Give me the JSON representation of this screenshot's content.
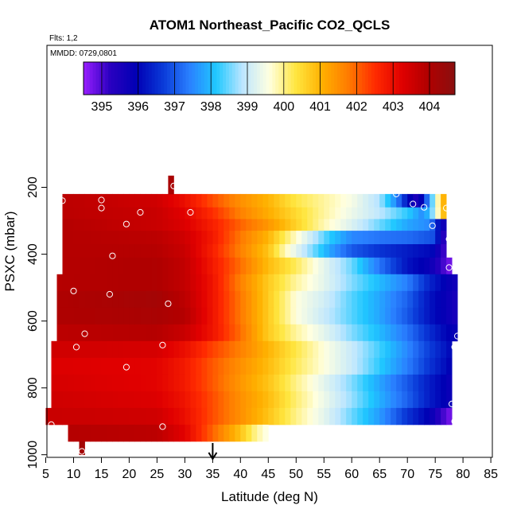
{
  "chart_data": {
    "type": "heatmap",
    "title": "ATOM1 Northeast_Pacific CO2_QCLS",
    "flights_note": "Flts: 1,2",
    "mmdd_note": "MMDD: 0729,0801",
    "xlabel": "Latitude (deg N)",
    "ylabel": "PSXC (mbar)",
    "xlim": [
      5,
      85
    ],
    "ylim": [
      1000,
      0
    ],
    "y_reversed": true,
    "x_ticks": [
      5,
      10,
      15,
      20,
      25,
      30,
      35,
      40,
      45,
      50,
      55,
      60,
      65,
      70,
      75,
      80,
      85
    ],
    "y_ticks": [
      200,
      400,
      600,
      800,
      1000
    ],
    "colorbar": {
      "ticks": [
        395,
        396,
        397,
        398,
        399,
        400,
        401,
        402,
        403,
        404
      ],
      "min": 394.5,
      "max": 404.7,
      "stops": [
        "#9a1fff",
        "#2a00c0",
        "#0000b4",
        "#0a3ad8",
        "#2a80ff",
        "#20c8ff",
        "#bde6ff",
        "#ffffe0",
        "#ffe640",
        "#ffb000",
        "#ff7a00",
        "#ff2a00",
        "#e00000",
        "#b00000",
        "#8a1010"
      ]
    },
    "arrow_latitude": 35,
    "bands": [
      {
        "p_top": 220,
        "p_bot": 260,
        "lat_start": 8,
        "lat_end": 77,
        "values": [
          [
            8,
            403.8
          ],
          [
            25,
            403.5
          ],
          [
            30,
            403.0
          ],
          [
            35,
            402.2
          ],
          [
            40,
            401.5
          ],
          [
            45,
            401.0
          ],
          [
            50,
            400.3
          ],
          [
            55,
            399.9
          ],
          [
            60,
            399.5
          ],
          [
            65,
            398.8
          ],
          [
            68,
            397.5
          ],
          [
            70,
            396.2
          ],
          [
            72,
            395.3
          ],
          [
            74,
            397.8
          ],
          [
            76,
            400.5
          ],
          [
            77,
            401.5
          ]
        ]
      },
      {
        "p_top": 260,
        "p_bot": 295,
        "lat_start": 8,
        "lat_end": 77,
        "values": [
          [
            8,
            403.8
          ],
          [
            25,
            403.6
          ],
          [
            30,
            403.2
          ],
          [
            35,
            402.5
          ],
          [
            40,
            401.7
          ],
          [
            45,
            401.1
          ],
          [
            50,
            400.5
          ],
          [
            55,
            399.9
          ],
          [
            60,
            399.4
          ],
          [
            65,
            398.9
          ],
          [
            70,
            398.2
          ],
          [
            73,
            397.5
          ],
          [
            75,
            399.0
          ],
          [
            76,
            400.5
          ],
          [
            77,
            401.2
          ]
        ]
      },
      {
        "p_top": 295,
        "p_bot": 330,
        "lat_start": 8,
        "lat_end": 77,
        "values": [
          [
            8,
            403.9
          ],
          [
            25,
            403.6
          ],
          [
            30,
            403.3
          ],
          [
            35,
            402.7
          ],
          [
            40,
            402.0
          ],
          [
            45,
            401.4
          ],
          [
            50,
            400.6
          ],
          [
            55,
            399.8
          ],
          [
            60,
            399.2
          ],
          [
            65,
            398.5
          ],
          [
            70,
            397.8
          ],
          [
            74,
            397.5
          ],
          [
            76,
            395.8
          ],
          [
            77,
            395.6
          ]
        ]
      },
      {
        "p_top": 330,
        "p_bot": 370,
        "lat_start": 8,
        "lat_end": 77,
        "values": [
          [
            8,
            403.9
          ],
          [
            25,
            403.8
          ],
          [
            30,
            403.5
          ],
          [
            35,
            402.8
          ],
          [
            40,
            401.8
          ],
          [
            45,
            401.0
          ],
          [
            48,
            400.2
          ],
          [
            52,
            399.2
          ],
          [
            56,
            398.2
          ],
          [
            60,
            397.5
          ],
          [
            65,
            397.3
          ],
          [
            70,
            397.2
          ],
          [
            75,
            396.9
          ],
          [
            76,
            395.5
          ],
          [
            77,
            395.2
          ]
        ]
      },
      {
        "p_top": 370,
        "p_bot": 410,
        "lat_start": 8,
        "lat_end": 77,
        "values": [
          [
            8,
            403.9
          ],
          [
            25,
            403.9
          ],
          [
            30,
            403.6
          ],
          [
            35,
            402.7
          ],
          [
            40,
            401.7
          ],
          [
            45,
            400.8
          ],
          [
            48,
            399.8
          ],
          [
            52,
            398.8
          ],
          [
            56,
            397.8
          ],
          [
            60,
            397.0
          ],
          [
            65,
            396.6
          ],
          [
            70,
            396.3
          ],
          [
            75,
            396.0
          ],
          [
            76,
            395.3
          ],
          [
            77,
            395.0
          ]
        ]
      },
      {
        "p_top": 410,
        "p_bot": 460,
        "lat_start": 8,
        "lat_end": 78,
        "values": [
          [
            8,
            403.9
          ],
          [
            25,
            404.0
          ],
          [
            30,
            403.7
          ],
          [
            35,
            402.8
          ],
          [
            40,
            401.9
          ],
          [
            45,
            400.9
          ],
          [
            50,
            400.2
          ],
          [
            55,
            399.3
          ],
          [
            60,
            398.5
          ],
          [
            65,
            397.3
          ],
          [
            70,
            396.2
          ],
          [
            74,
            395.8
          ],
          [
            76,
            395.2
          ],
          [
            77,
            394.9
          ],
          [
            78,
            394.7
          ]
        ]
      },
      {
        "p_top": 460,
        "p_bot": 510,
        "lat_start": 7,
        "lat_end": 79,
        "values": [
          [
            7,
            403.9
          ],
          [
            25,
            404.0
          ],
          [
            30,
            403.7
          ],
          [
            35,
            402.9
          ],
          [
            40,
            401.7
          ],
          [
            45,
            400.7
          ],
          [
            50,
            399.9
          ],
          [
            55,
            399.3
          ],
          [
            60,
            398.6
          ],
          [
            65,
            398.0
          ],
          [
            70,
            397.4
          ],
          [
            74,
            396.4
          ],
          [
            77,
            395.9
          ],
          [
            79,
            395.6
          ]
        ]
      },
      {
        "p_top": 510,
        "p_bot": 560,
        "lat_start": 7,
        "lat_end": 79,
        "values": [
          [
            7,
            404.0
          ],
          [
            25,
            404.2
          ],
          [
            30,
            403.8
          ],
          [
            35,
            402.9
          ],
          [
            40,
            401.8
          ],
          [
            45,
            400.7
          ],
          [
            50,
            399.6
          ],
          [
            55,
            399.1
          ],
          [
            60,
            398.4
          ],
          [
            65,
            397.8
          ],
          [
            70,
            397.1
          ],
          [
            74,
            396.2
          ],
          [
            77,
            395.8
          ],
          [
            79,
            395.5
          ]
        ]
      },
      {
        "p_top": 560,
        "p_bot": 610,
        "lat_start": 7,
        "lat_end": 79,
        "values": [
          [
            7,
            404.0
          ],
          [
            25,
            404.1
          ],
          [
            30,
            403.9
          ],
          [
            35,
            402.9
          ],
          [
            40,
            401.8
          ],
          [
            45,
            400.7
          ],
          [
            50,
            399.6
          ],
          [
            55,
            399.0
          ],
          [
            60,
            398.4
          ],
          [
            65,
            397.8
          ],
          [
            70,
            397.0
          ],
          [
            74,
            396.2
          ],
          [
            77,
            395.8
          ],
          [
            79,
            395.5
          ]
        ]
      },
      {
        "p_top": 610,
        "p_bot": 660,
        "lat_start": 7,
        "lat_end": 79,
        "values": [
          [
            7,
            403.8
          ],
          [
            25,
            403.9
          ],
          [
            30,
            403.6
          ],
          [
            35,
            402.9
          ],
          [
            40,
            401.9
          ],
          [
            45,
            400.7
          ],
          [
            50,
            399.9
          ],
          [
            55,
            399.3
          ],
          [
            60,
            398.6
          ],
          [
            65,
            398.0
          ],
          [
            70,
            397.3
          ],
          [
            74,
            396.5
          ],
          [
            77,
            396.0
          ],
          [
            79,
            395.8
          ]
        ]
      },
      {
        "p_top": 660,
        "p_bot": 710,
        "lat_start": 6,
        "lat_end": 78,
        "values": [
          [
            6,
            403.5
          ],
          [
            25,
            403.4
          ],
          [
            30,
            403.0
          ],
          [
            35,
            402.3
          ],
          [
            40,
            401.7
          ],
          [
            45,
            401.0
          ],
          [
            50,
            400.3
          ],
          [
            55,
            399.6
          ],
          [
            60,
            399.0
          ],
          [
            65,
            398.3
          ],
          [
            70,
            397.5
          ],
          [
            74,
            396.7
          ],
          [
            77,
            396.2
          ],
          [
            78,
            396.0
          ]
        ]
      },
      {
        "p_top": 710,
        "p_bot": 760,
        "lat_start": 6,
        "lat_end": 78,
        "values": [
          [
            6,
            403.3
          ],
          [
            25,
            403.2
          ],
          [
            30,
            402.8
          ],
          [
            35,
            402.1
          ],
          [
            40,
            401.5
          ],
          [
            45,
            400.9
          ],
          [
            50,
            400.2
          ],
          [
            55,
            399.6
          ],
          [
            60,
            399.0
          ],
          [
            65,
            398.2
          ],
          [
            70,
            397.4
          ],
          [
            74,
            396.6
          ],
          [
            77,
            396.1
          ],
          [
            78,
            395.9
          ]
        ]
      },
      {
        "p_top": 760,
        "p_bot": 810,
        "lat_start": 6,
        "lat_end": 78,
        "values": [
          [
            6,
            403.4
          ],
          [
            25,
            403.2
          ],
          [
            30,
            402.8
          ],
          [
            35,
            402.1
          ],
          [
            40,
            401.4
          ],
          [
            45,
            400.8
          ],
          [
            50,
            400.0
          ],
          [
            55,
            399.3
          ],
          [
            60,
            398.6
          ],
          [
            65,
            397.8
          ],
          [
            70,
            397.0
          ],
          [
            74,
            396.3
          ],
          [
            77,
            395.9
          ],
          [
            78,
            395.7
          ]
        ]
      },
      {
        "p_top": 810,
        "p_bot": 860,
        "lat_start": 6,
        "lat_end": 78,
        "values": [
          [
            6,
            403.5
          ],
          [
            25,
            403.3
          ],
          [
            30,
            402.9
          ],
          [
            35,
            402.2
          ],
          [
            40,
            401.5
          ],
          [
            45,
            400.9
          ],
          [
            50,
            400.1
          ],
          [
            55,
            399.4
          ],
          [
            60,
            398.7
          ],
          [
            65,
            397.9
          ],
          [
            70,
            397.1
          ],
          [
            74,
            396.3
          ],
          [
            77,
            395.9
          ],
          [
            78,
            395.7
          ]
        ]
      },
      {
        "p_top": 860,
        "p_bot": 910,
        "lat_start": 5,
        "lat_end": 78,
        "values": [
          [
            5,
            403.6
          ],
          [
            25,
            403.5
          ],
          [
            30,
            403.0
          ],
          [
            35,
            402.2
          ],
          [
            40,
            401.5
          ],
          [
            45,
            400.8
          ],
          [
            50,
            400.0
          ],
          [
            55,
            399.3
          ],
          [
            60,
            398.5
          ],
          [
            65,
            397.7
          ],
          [
            70,
            396.6
          ],
          [
            74,
            395.9
          ],
          [
            76,
            395.2
          ],
          [
            77,
            394.9
          ],
          [
            78,
            394.7
          ]
        ]
      },
      {
        "p_top": 910,
        "p_bot": 960,
        "lat_start": 9,
        "lat_end": 45,
        "values": [
          [
            9,
            403.9
          ],
          [
            25,
            403.8
          ],
          [
            30,
            403.2
          ],
          [
            35,
            402.0
          ],
          [
            40,
            400.8
          ],
          [
            43,
            399.9
          ],
          [
            45,
            399.5
          ]
        ]
      },
      {
        "p_top": 960,
        "p_bot": 1000,
        "lat_start": 11,
        "lat_end": 12,
        "values": [
          [
            11,
            404.2
          ],
          [
            12,
            404.2
          ]
        ]
      },
      {
        "p_top": 165,
        "p_bot": 220,
        "lat_start": 27,
        "lat_end": 28,
        "values": [
          [
            27,
            404.1
          ],
          [
            28,
            404.1
          ]
        ]
      }
    ],
    "markers": [
      [
        8,
        240
      ],
      [
        15,
        238
      ],
      [
        15,
        262
      ],
      [
        19.5,
        310
      ],
      [
        22,
        275
      ],
      [
        31,
        275
      ],
      [
        17,
        405
      ],
      [
        28,
        196
      ],
      [
        68,
        220
      ],
      [
        71,
        250
      ],
      [
        73,
        260
      ],
      [
        74.5,
        315
      ],
      [
        77,
        262
      ],
      [
        77.5,
        355
      ],
      [
        77.5,
        440
      ],
      [
        10,
        510
      ],
      [
        16.5,
        520
      ],
      [
        27,
        548
      ],
      [
        12,
        638
      ],
      [
        10.5,
        678
      ],
      [
        19.5,
        738
      ],
      [
        26,
        672
      ],
      [
        79,
        645
      ],
      [
        78.5,
        678
      ],
      [
        6,
        910
      ],
      [
        26,
        916
      ],
      [
        11.5,
        990
      ],
      [
        78,
        848
      ],
      [
        78.5,
        900
      ]
    ]
  }
}
